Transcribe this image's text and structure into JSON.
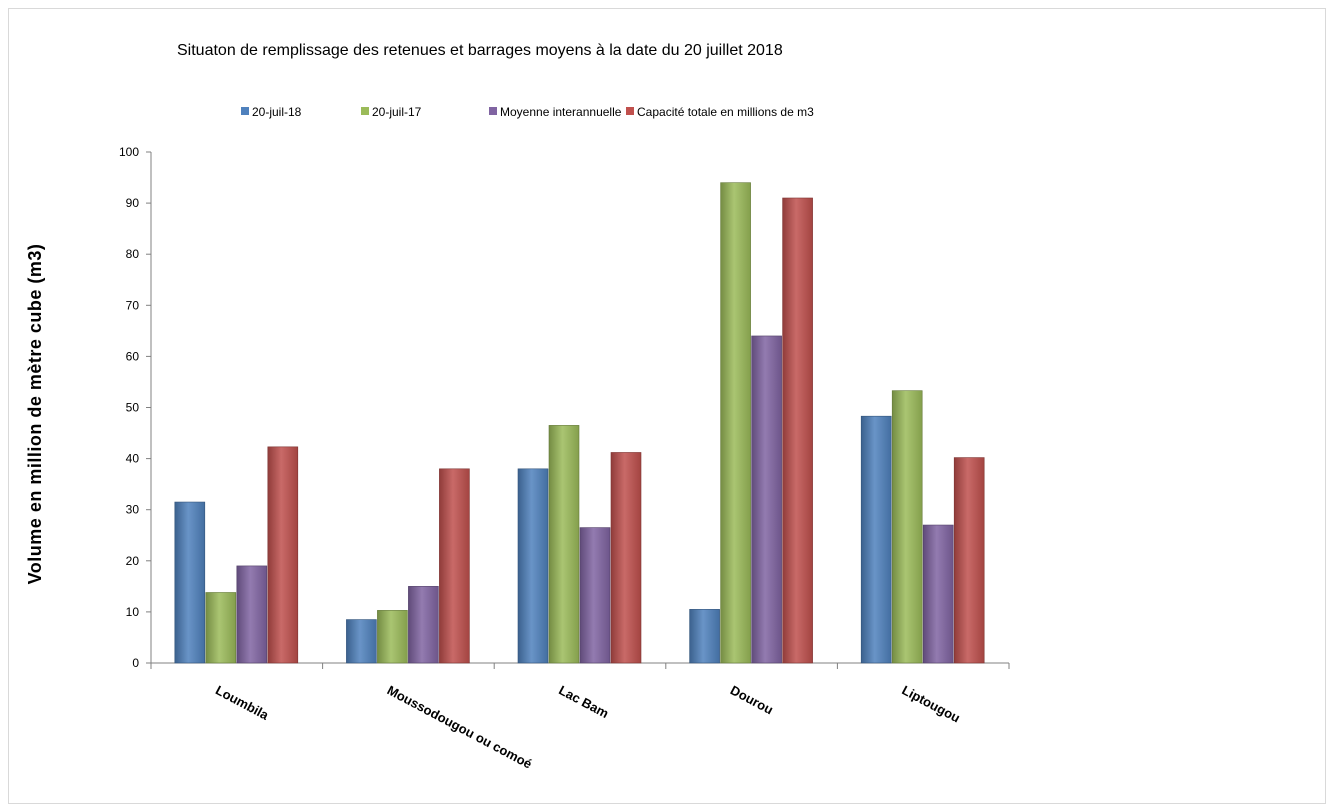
{
  "chart_data": {
    "type": "bar",
    "title": "Situaton de remplissage des retenues et barrages moyens à la date du 20 juillet  2018",
    "xlabel": "",
    "ylabel": "Volume en million de mètre cube (m3)",
    "ylim": [
      0,
      100
    ],
    "yticks": [
      "0",
      "10",
      "20",
      "30",
      "40",
      "50",
      "60",
      "70",
      "80",
      "90",
      "100"
    ],
    "grid": false,
    "legend_position": "top",
    "categories": [
      "Loumbila",
      "Moussodougou ou comoé",
      "Lac Bam",
      "Dourou",
      "Liptougou"
    ],
    "series": [
      {
        "name": "20-juil-18",
        "color": "#4f81bd",
        "values": [
          31.5,
          8.5,
          38,
          10.5,
          48.3
        ]
      },
      {
        "name": "20-juil-17",
        "color": "#9bbb59",
        "values": [
          13.8,
          10.3,
          46.5,
          94,
          53.3
        ]
      },
      {
        "name": "Moyenne interannuelle",
        "color": "#8064a2",
        "values": [
          19,
          15,
          26.5,
          64,
          27
        ]
      },
      {
        "name": "Capacité totale en millions de m3",
        "color": "#c0504d",
        "values": [
          42.3,
          38,
          41.2,
          91,
          40.2
        ]
      }
    ]
  }
}
